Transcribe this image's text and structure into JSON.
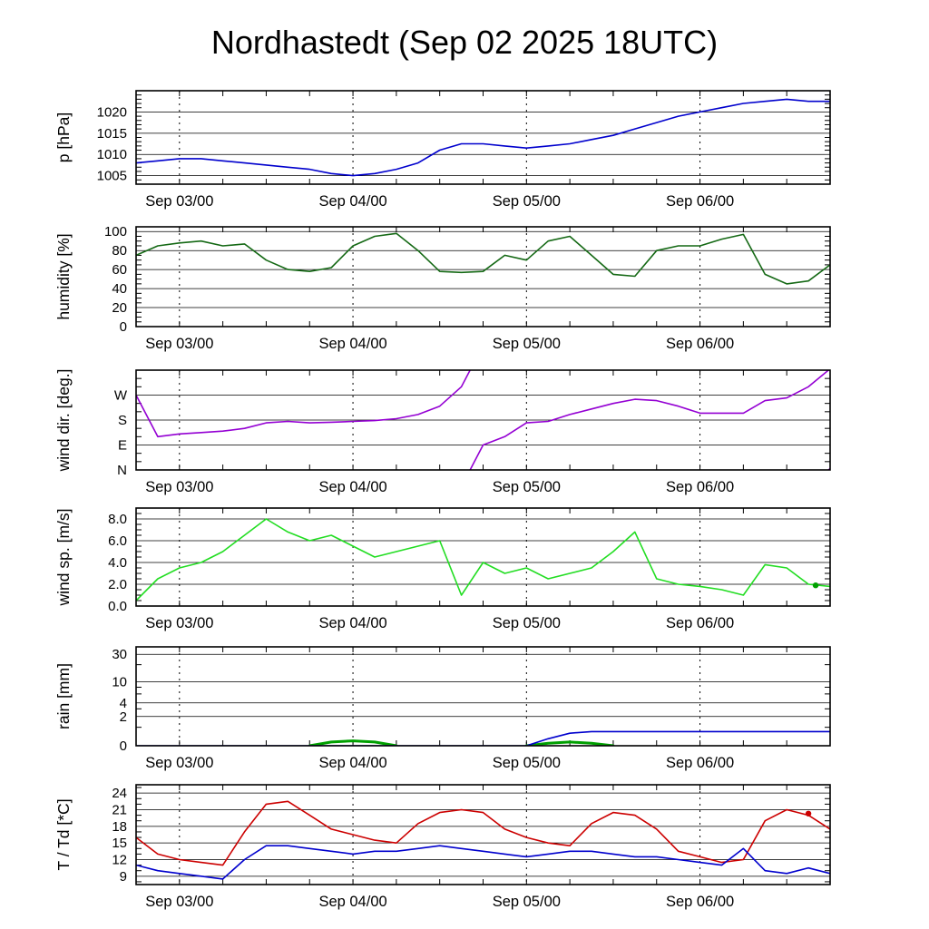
{
  "title": "Nordhastedt (Sep 02 2025 18UTC)",
  "colors": {
    "pressure": "#0000cd",
    "humidity": "#156915",
    "wind_direction": "#9400d3",
    "wind_speed": "#22dd22",
    "rain_accumulated": "#0000cd",
    "rain_rate": "#00a000",
    "temperature": "#cc0000",
    "dewpoint": "#0000cd"
  },
  "chart_data": {
    "type": "line",
    "title": "Nordhastedt (Sep 02 2025 18UTC)",
    "x": {
      "start_label": "Sep 02 2025 18UTC",
      "hours": [
        0,
        3,
        6,
        9,
        12,
        15,
        18,
        21,
        24,
        27,
        30,
        33,
        36,
        39,
        42,
        45,
        48,
        51,
        54,
        57,
        60,
        63,
        66,
        69,
        72,
        75,
        78,
        81,
        84,
        87,
        90,
        93,
        96
      ],
      "range": [
        0,
        96
      ],
      "major_tick_hours": [
        6,
        30,
        54,
        78
      ],
      "major_tick_labels": [
        "Sep 03/00",
        "Sep 04/00",
        "Sep 05/00",
        "Sep 06/00"
      ],
      "minor_step_hours": 6
    },
    "panels": [
      {
        "id": "pressure",
        "ylabel": "p [hPa]",
        "ylim": [
          1003,
          1025
        ],
        "yticks": [
          1005,
          1010,
          1015,
          1020
        ],
        "ytick_labels": [
          "1005",
          "1010",
          "1015",
          "1020"
        ],
        "minor_step": 1,
        "series": [
          {
            "name": "pressure",
            "color": "#0000cd",
            "values": [
              1008,
              1008.5,
              1009,
              1009,
              1008.5,
              1008,
              1007.5,
              1007,
              1006.5,
              1005.5,
              1005,
              1005.5,
              1006.5,
              1008,
              1011,
              1012.5,
              1012.5,
              1012,
              1011.5,
              1012,
              1012.5,
              1013.5,
              1014.5,
              1016,
              1017.5,
              1019,
              1020,
              1021,
              1022,
              1022.5,
              1023,
              1022.5,
              1022.5
            ]
          }
        ]
      },
      {
        "id": "humidity",
        "ylabel": "humidity [%]",
        "ylim": [
          0,
          105
        ],
        "yticks": [
          0,
          20,
          40,
          60,
          80,
          100
        ],
        "ytick_labels": [
          "0",
          "20",
          "40",
          "60",
          "80",
          "100"
        ],
        "minor_step": 5,
        "series": [
          {
            "name": "humidity",
            "color": "#156915",
            "values": [
              75,
              85,
              88,
              90,
              85,
              87,
              70,
              60,
              58,
              62,
              85,
              95,
              98,
              80,
              58,
              57,
              58,
              75,
              70,
              90,
              95,
              75,
              55,
              53,
              80,
              85,
              85,
              92,
              97,
              55,
              45,
              48,
              65
            ]
          }
        ]
      },
      {
        "id": "wind-direction",
        "ylabel": "wind dir. [deg.]",
        "ylim": [
          0,
          360
        ],
        "yticks": [
          0,
          90,
          180,
          270
        ],
        "ytick_labels": [
          "N",
          "E",
          "S",
          "W"
        ],
        "minor_step": 30,
        "series": [
          {
            "name": "wind-direction",
            "color": "#9400d3",
            "wrap": 360,
            "values": [
              270,
              120,
              130,
              135,
              140,
              150,
              170,
              175,
              170,
              172,
              175,
              178,
              185,
              200,
              230,
              300,
              90,
              120,
              170,
              175,
              200,
              220,
              240,
              255,
              250,
              230,
              205,
              205,
              205,
              250,
              260,
              300,
              5
            ]
          }
        ]
      },
      {
        "id": "wind-speed",
        "ylabel": "wind sp. [m/s]",
        "ylim": [
          0,
          9
        ],
        "yticks": [
          0,
          2,
          4,
          6,
          8
        ],
        "ytick_labels": [
          "0.0",
          "2.0",
          "4.0",
          "6.0",
          "8.0"
        ],
        "minor_step": 0.5,
        "series": [
          {
            "name": "wind-speed",
            "color": "#22dd22",
            "values": [
              0.5,
              2.5,
              3.5,
              4.0,
              5.0,
              6.5,
              8.0,
              6.8,
              6.0,
              6.5,
              5.5,
              4.5,
              5.0,
              5.5,
              6.0,
              1.0,
              4.0,
              3.0,
              3.5,
              2.5,
              3.0,
              3.5,
              5.0,
              6.8,
              2.5,
              2.0,
              1.8,
              1.5,
              1.0,
              3.8,
              3.5,
              2.0,
              1.8
            ],
            "dot": {
              "h": 94,
              "v": 1.9
            },
            "dot_color": "#00a000"
          }
        ]
      },
      {
        "id": "rain",
        "ylabel": "rain [mm]",
        "scale": "log1p",
        "vmax": 40,
        "yticks": [
          0,
          2,
          4,
          10,
          30
        ],
        "ytick_labels": [
          "0",
          "2",
          "4",
          "10",
          "30"
        ],
        "minor_ticks": [
          1,
          3,
          6,
          8,
          20
        ],
        "series": [
          {
            "name": "rain-rate",
            "color": "#00a000",
            "width": 3,
            "skip_zero": true,
            "values": [
              0,
              0,
              0,
              0,
              0,
              0,
              0,
              0,
              0,
              0.15,
              0.2,
              0.15,
              0,
              0,
              0,
              0,
              0,
              0,
              0,
              0.1,
              0.15,
              0.1,
              0,
              0,
              0,
              0,
              0,
              0,
              0,
              0,
              0,
              0,
              0
            ]
          },
          {
            "name": "rain-accumulated",
            "color": "#0000cd",
            "values": [
              0,
              0,
              0,
              0,
              0,
              0,
              0,
              0,
              0,
              0,
              0,
              0,
              0,
              0,
              0,
              0,
              0,
              0,
              0,
              0.3,
              0.6,
              0.7,
              0.7,
              0.7,
              0.7,
              0.7,
              0.7,
              0.7,
              0.7,
              0.7,
              0.7,
              0.7,
              0.7
            ]
          }
        ]
      },
      {
        "id": "temperature-dewpoint",
        "ylabel": "T / Td [*C]",
        "ylim": [
          7.5,
          25.5
        ],
        "yticks": [
          9,
          12,
          15,
          18,
          21,
          24
        ],
        "ytick_labels": [
          "9",
          "12",
          "15",
          "18",
          "21",
          "24"
        ],
        "minor_step": 1,
        "series": [
          {
            "name": "temperature",
            "color": "#cc0000",
            "values": [
              16,
              13,
              12,
              11.5,
              11,
              17,
              22,
              22.5,
              20,
              17.5,
              16.5,
              15.5,
              15,
              18.5,
              20.5,
              21,
              20.5,
              17.5,
              16,
              15,
              14.5,
              18.5,
              20.5,
              20,
              17.5,
              13.5,
              12.5,
              11.5,
              12,
              19,
              21,
              20,
              17.5
            ],
            "dot": {
              "h": 93,
              "v": 20.3
            },
            "dot_color": "#cc0000"
          },
          {
            "name": "dewpoint",
            "color": "#0000cd",
            "values": [
              11,
              10,
              9.5,
              9,
              8.5,
              12,
              14.5,
              14.5,
              14,
              13.5,
              13,
              13.5,
              13.5,
              14,
              14.5,
              14,
              13.5,
              13,
              12.5,
              13,
              13.5,
              13.5,
              13,
              12.5,
              12.5,
              12,
              11.5,
              11,
              14,
              10,
              9.5,
              10.5,
              9.5
            ]
          }
        ]
      }
    ]
  }
}
